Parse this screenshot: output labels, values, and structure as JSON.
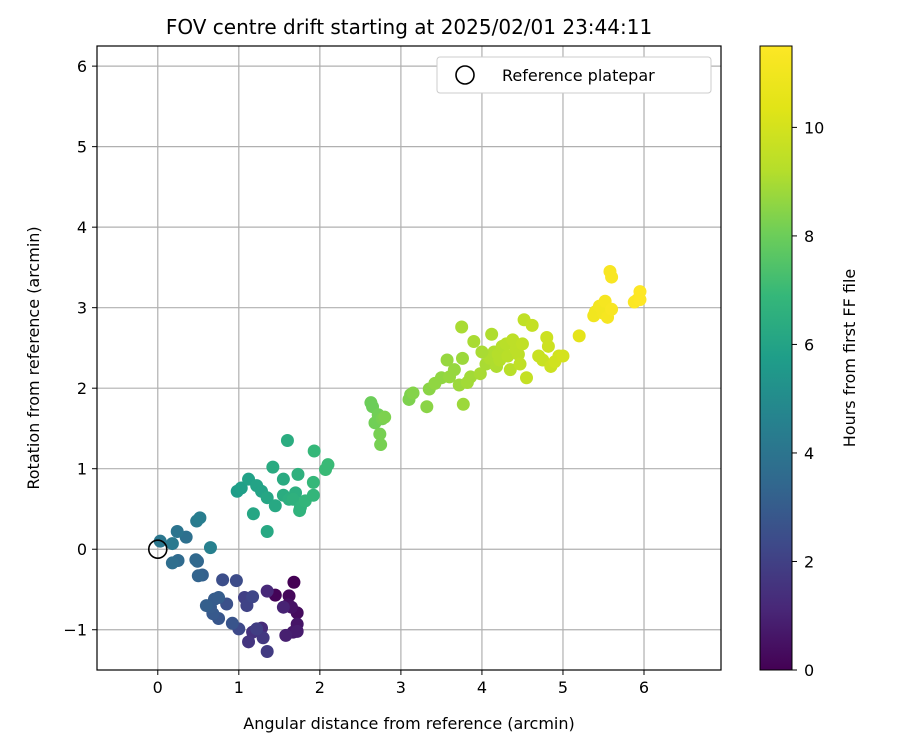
{
  "chart_data": {
    "type": "scatter",
    "title": "FOV centre drift starting at 2025/02/01 23:44:11",
    "xlabel": "Angular distance from reference (arcmin)",
    "ylabel": "Rotation from reference (arcmin)",
    "xlim": [
      -0.75,
      6.95
    ],
    "ylim": [
      -1.5,
      6.25
    ],
    "xticks": [
      "0",
      "1",
      "2",
      "3",
      "4",
      "5",
      "6"
    ],
    "yticks": [
      "−1",
      "0",
      "1",
      "2",
      "3",
      "4",
      "5",
      "6"
    ],
    "grid": true,
    "legend": {
      "placement": "top-right",
      "entries": [
        "Reference platepar"
      ]
    },
    "colorbar": {
      "label": "Hours from first FF file",
      "ticks": [
        "0",
        "2",
        "4",
        "6",
        "8",
        "10"
      ],
      "range": [
        0,
        11.5
      ],
      "colormap": "viridis"
    },
    "reference_point": {
      "x": 0,
      "y": 0,
      "marker": "open-circle"
    },
    "points": [
      [
        1.68,
        -0.41,
        0.0
      ],
      [
        1.45,
        -0.57,
        0.1
      ],
      [
        1.62,
        -0.58,
        0.2
      ],
      [
        1.72,
        -0.79,
        0.3
      ],
      [
        1.61,
        -0.69,
        0.4
      ],
      [
        1.65,
        -0.72,
        0.5
      ],
      [
        1.72,
        -0.93,
        0.6
      ],
      [
        1.67,
        -1.03,
        0.7
      ],
      [
        1.72,
        -1.02,
        0.8
      ],
      [
        1.58,
        -1.07,
        0.9
      ],
      [
        1.55,
        -0.72,
        1.0
      ],
      [
        1.35,
        -0.52,
        1.2
      ],
      [
        1.28,
        -0.98,
        1.3
      ],
      [
        1.17,
        -1.03,
        1.5
      ],
      [
        1.12,
        -1.15,
        1.6
      ],
      [
        1.3,
        -1.1,
        1.7
      ],
      [
        1.35,
        -1.27,
        1.8
      ],
      [
        1.22,
        -0.99,
        1.9
      ],
      [
        1.07,
        -0.6,
        2.0
      ],
      [
        1.1,
        -0.7,
        2.1
      ],
      [
        1.17,
        -0.59,
        2.2
      ],
      [
        1.0,
        -0.99,
        2.3
      ],
      [
        0.97,
        -0.39,
        2.4
      ],
      [
        0.8,
        -0.38,
        2.5
      ],
      [
        0.85,
        -0.68,
        2.6
      ],
      [
        0.92,
        -0.92,
        2.7
      ],
      [
        0.75,
        -0.86,
        2.8
      ],
      [
        0.68,
        -0.8,
        2.9
      ],
      [
        0.65,
        -0.72,
        2.95
      ],
      [
        0.7,
        -0.62,
        3.0
      ],
      [
        0.75,
        -0.6,
        3.05
      ],
      [
        0.6,
        -0.7,
        3.1
      ],
      [
        0.55,
        -0.32,
        3.2
      ],
      [
        0.5,
        -0.33,
        3.3
      ],
      [
        0.49,
        -0.15,
        3.4
      ],
      [
        0.47,
        -0.13,
        3.5
      ],
      [
        0.25,
        -0.14,
        3.6
      ],
      [
        0.18,
        -0.17,
        3.7
      ],
      [
        0.35,
        0.15,
        3.8
      ],
      [
        0.24,
        0.22,
        4.0
      ],
      [
        0.03,
        0.1,
        4.1
      ],
      [
        0.18,
        0.07,
        4.2
      ],
      [
        0.48,
        0.35,
        4.3
      ],
      [
        0.52,
        0.39,
        4.4
      ],
      [
        0.65,
        0.02,
        4.5
      ],
      [
        0.98,
        0.72,
        5.7
      ],
      [
        1.03,
        0.76,
        5.8
      ],
      [
        1.12,
        0.87,
        5.9
      ],
      [
        1.22,
        0.79,
        6.0
      ],
      [
        1.28,
        0.72,
        6.0
      ],
      [
        1.35,
        0.64,
        6.1
      ],
      [
        1.18,
        0.44,
        6.1
      ],
      [
        1.35,
        0.22,
        6.2
      ],
      [
        1.45,
        0.54,
        6.2
      ],
      [
        1.42,
        1.02,
        6.3
      ],
      [
        1.55,
        0.87,
        6.3
      ],
      [
        1.6,
        1.35,
        6.4
      ],
      [
        1.55,
        0.67,
        6.4
      ],
      [
        1.62,
        0.62,
        6.5
      ],
      [
        1.7,
        0.7,
        6.5
      ],
      [
        1.67,
        0.62,
        6.6
      ],
      [
        1.73,
        0.93,
        6.6
      ],
      [
        1.76,
        0.52,
        6.7
      ],
      [
        1.75,
        0.48,
        6.7
      ],
      [
        1.82,
        0.6,
        6.8
      ],
      [
        1.92,
        0.67,
        6.8
      ],
      [
        1.92,
        0.83,
        6.9
      ],
      [
        1.93,
        1.22,
        6.9
      ],
      [
        2.07,
        0.99,
        7.0
      ],
      [
        2.1,
        1.05,
        7.0
      ],
      [
        2.63,
        1.82,
        8.0
      ],
      [
        2.65,
        1.77,
        8.0
      ],
      [
        2.68,
        1.57,
        8.1
      ],
      [
        2.72,
        1.67,
        8.1
      ],
      [
        2.74,
        1.43,
        8.2
      ],
      [
        2.75,
        1.3,
        8.2
      ],
      [
        2.77,
        1.62,
        8.2
      ],
      [
        2.8,
        1.64,
        8.3
      ],
      [
        3.1,
        1.86,
        8.3
      ],
      [
        3.12,
        1.92,
        8.3
      ],
      [
        3.15,
        1.94,
        8.4
      ],
      [
        3.32,
        1.77,
        8.5
      ],
      [
        3.35,
        1.99,
        8.5
      ],
      [
        3.42,
        2.06,
        8.6
      ],
      [
        3.5,
        2.13,
        8.6
      ],
      [
        3.57,
        2.35,
        8.7
      ],
      [
        3.6,
        2.14,
        8.7
      ],
      [
        3.66,
        2.23,
        8.7
      ],
      [
        3.72,
        2.04,
        8.8
      ],
      [
        3.76,
        2.37,
        8.8
      ],
      [
        3.77,
        1.8,
        8.8
      ],
      [
        3.82,
        2.07,
        8.9
      ],
      [
        3.86,
        2.14,
        8.9
      ],
      [
        3.9,
        2.58,
        9.0
      ],
      [
        3.98,
        2.18,
        9.0
      ],
      [
        4.05,
        2.3,
        9.0
      ],
      [
        4.1,
        2.37,
        9.1
      ],
      [
        4.15,
        2.45,
        9.1
      ],
      [
        4.18,
        2.27,
        9.1
      ],
      [
        4.2,
        2.42,
        9.2
      ],
      [
        4.22,
        2.35,
        9.2
      ],
      [
        4.25,
        2.52,
        9.2
      ],
      [
        4.3,
        2.55,
        9.3
      ],
      [
        4.32,
        2.4,
        9.3
      ],
      [
        4.35,
        2.23,
        9.3
      ],
      [
        4.38,
        2.6,
        9.4
      ],
      [
        4.42,
        2.48,
        9.4
      ],
      [
        4.45,
        2.42,
        9.4
      ],
      [
        4.47,
        2.3,
        9.5
      ],
      [
        4.5,
        2.55,
        9.5
      ],
      [
        4.52,
        2.85,
        9.5
      ],
      [
        4.55,
        2.13,
        9.6
      ],
      [
        4.62,
        2.78,
        9.6
      ],
      [
        4.7,
        2.4,
        9.7
      ],
      [
        4.75,
        2.35,
        9.7
      ],
      [
        4.8,
        2.63,
        9.8
      ],
      [
        4.82,
        2.52,
        9.8
      ],
      [
        4.85,
        2.27,
        9.8
      ],
      [
        4.9,
        2.33,
        9.9
      ],
      [
        4.95,
        2.4,
        9.9
      ],
      [
        3.75,
        2.76,
        9.0
      ],
      [
        4.12,
        2.67,
        9.1
      ],
      [
        4.0,
        2.45,
        9.0
      ],
      [
        5.0,
        2.4,
        10.0
      ],
      [
        5.2,
        2.65,
        10.5
      ],
      [
        5.38,
        2.9,
        11.0
      ],
      [
        5.4,
        2.95,
        11.0
      ],
      [
        5.45,
        3.02,
        11.1
      ],
      [
        5.5,
        2.93,
        11.1
      ],
      [
        5.55,
        2.88,
        11.2
      ],
      [
        5.52,
        3.08,
        11.2
      ],
      [
        5.58,
        3.45,
        11.3
      ],
      [
        5.6,
        3.38,
        11.3
      ],
      [
        5.6,
        2.98,
        11.3
      ],
      [
        5.88,
        3.07,
        11.4
      ],
      [
        5.92,
        3.1,
        11.4
      ],
      [
        5.95,
        3.2,
        11.5
      ],
      [
        5.95,
        3.1,
        11.5
      ]
    ]
  }
}
